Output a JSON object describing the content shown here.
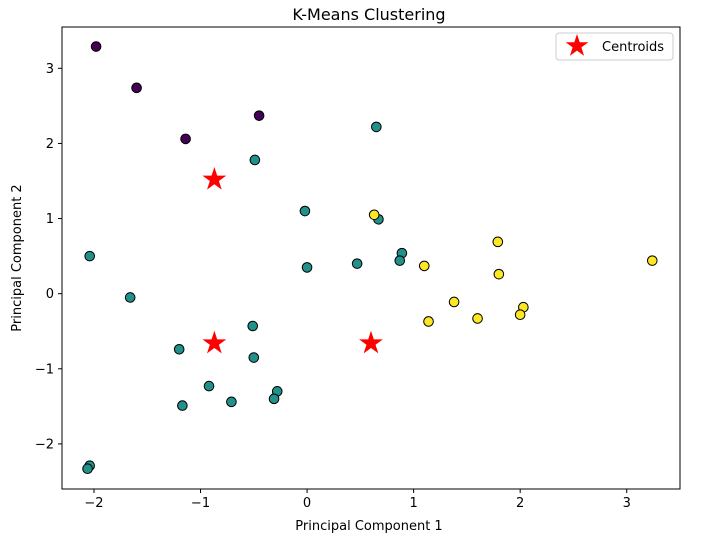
{
  "chart_data": {
    "type": "scatter",
    "title": "K-Means Clustering",
    "xlabel": "Principal Component 1",
    "ylabel": "Principal Component 2",
    "xlim": [
      -2.3,
      3.5
    ],
    "ylim": [
      -2.6,
      3.55
    ],
    "xticks": [
      -2,
      -1,
      0,
      1,
      2,
      3
    ],
    "yticks": [
      -2,
      -1,
      0,
      1,
      2,
      3
    ],
    "xtick_labels": [
      "−2",
      "−1",
      "0",
      "1",
      "2",
      "3"
    ],
    "ytick_labels": [
      "−2",
      "−1",
      "0",
      "1",
      "2",
      "3"
    ],
    "grid": false,
    "legend": {
      "position": "top-right",
      "entries": [
        "Centroids"
      ]
    },
    "cluster_colors": {
      "purple": "#440154",
      "teal": "#21918c",
      "yellow": "#fde725"
    },
    "centroid_color": "#ff0000",
    "point_edge_color": "#000000",
    "points": [
      {
        "x": -1.98,
        "y": 3.29,
        "cluster": "purple"
      },
      {
        "x": -1.6,
        "y": 2.74,
        "cluster": "purple"
      },
      {
        "x": -1.14,
        "y": 2.06,
        "cluster": "purple"
      },
      {
        "x": -0.45,
        "y": 2.37,
        "cluster": "purple"
      },
      {
        "x": 0.65,
        "y": 2.22,
        "cluster": "teal"
      },
      {
        "x": -0.49,
        "y": 1.78,
        "cluster": "teal"
      },
      {
        "x": -0.02,
        "y": 1.1,
        "cluster": "teal"
      },
      {
        "x": 0.67,
        "y": 0.99,
        "cluster": "teal"
      },
      {
        "x": 0.89,
        "y": 0.54,
        "cluster": "teal"
      },
      {
        "x": 0.87,
        "y": 0.44,
        "cluster": "teal"
      },
      {
        "x": 0.47,
        "y": 0.4,
        "cluster": "teal"
      },
      {
        "x": 0.0,
        "y": 0.35,
        "cluster": "teal"
      },
      {
        "x": -2.04,
        "y": 0.5,
        "cluster": "teal"
      },
      {
        "x": -1.66,
        "y": -0.05,
        "cluster": "teal"
      },
      {
        "x": -1.2,
        "y": -0.74,
        "cluster": "teal"
      },
      {
        "x": -0.51,
        "y": -0.43,
        "cluster": "teal"
      },
      {
        "x": -0.5,
        "y": -0.85,
        "cluster": "teal"
      },
      {
        "x": -0.92,
        "y": -1.23,
        "cluster": "teal"
      },
      {
        "x": -0.71,
        "y": -1.44,
        "cluster": "teal"
      },
      {
        "x": -0.28,
        "y": -1.3,
        "cluster": "teal"
      },
      {
        "x": -0.31,
        "y": -1.4,
        "cluster": "teal"
      },
      {
        "x": -1.17,
        "y": -1.49,
        "cluster": "teal"
      },
      {
        "x": -2.04,
        "y": -2.29,
        "cluster": "teal"
      },
      {
        "x": -2.06,
        "y": -2.33,
        "cluster": "teal"
      },
      {
        "x": 0.63,
        "y": 1.05,
        "cluster": "yellow"
      },
      {
        "x": 1.79,
        "y": 0.69,
        "cluster": "yellow"
      },
      {
        "x": 1.1,
        "y": 0.37,
        "cluster": "yellow"
      },
      {
        "x": 1.8,
        "y": 0.26,
        "cluster": "yellow"
      },
      {
        "x": 3.24,
        "y": 0.44,
        "cluster": "yellow"
      },
      {
        "x": 1.38,
        "y": -0.11,
        "cluster": "yellow"
      },
      {
        "x": 1.14,
        "y": -0.37,
        "cluster": "yellow"
      },
      {
        "x": 1.6,
        "y": -0.33,
        "cluster": "yellow"
      },
      {
        "x": 2.03,
        "y": -0.18,
        "cluster": "yellow"
      },
      {
        "x": 2.0,
        "y": -0.28,
        "cluster": "yellow"
      }
    ],
    "centroids": [
      {
        "x": -0.87,
        "y": 1.52
      },
      {
        "x": -0.87,
        "y": -0.66
      },
      {
        "x": 0.6,
        "y": -0.66
      }
    ]
  }
}
